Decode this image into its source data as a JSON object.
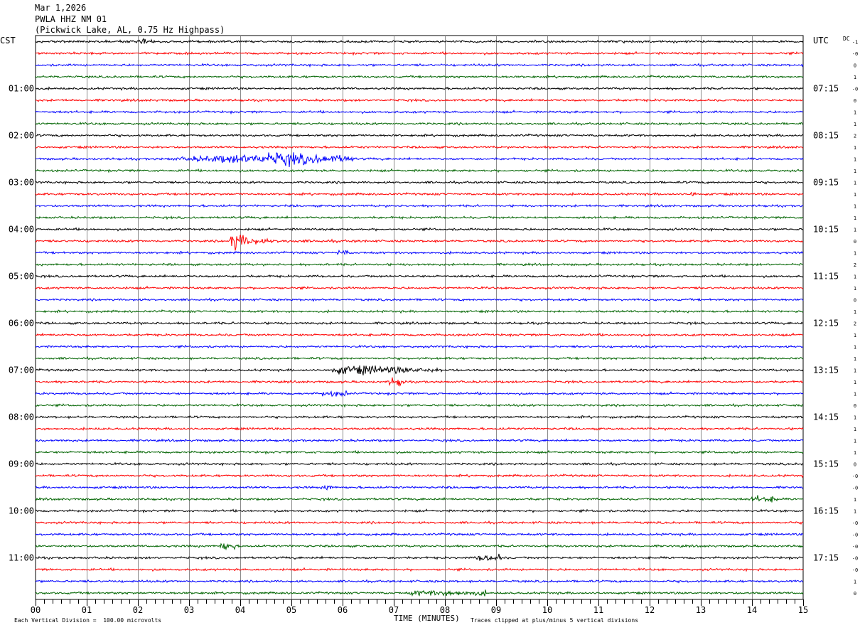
{
  "header": {
    "date": "Mar 1,2026",
    "station": "PWLA HHZ NM 01",
    "location": "(Pickwick Lake, AL, 0.75 Hz Highpass)"
  },
  "left_axis_label": "CST",
  "right_axis_label": "UTC",
  "dc_label": "DC",
  "footer": {
    "scale_note": "Each Vertical Division =  100.00 microvolts",
    "xaxis_title": "TIME (MINUTES)",
    "clip_note": "Traces clipped at plus/minus 5 vertical divisions"
  },
  "chart_data": {
    "type": "helicorder",
    "x_ticks": [
      "00",
      "01",
      "02",
      "03",
      "04",
      "05",
      "06",
      "07",
      "08",
      "09",
      "10",
      "11",
      "12",
      "13",
      "14",
      "15"
    ],
    "xlim": [
      0,
      15
    ],
    "minutes_per_line": 15,
    "line_count": 48,
    "trace_colors": [
      "#000000",
      "#ff0000",
      "#0000ff",
      "#006400"
    ],
    "left_hour_labels": [
      "01:00",
      "02:00",
      "03:00",
      "04:00",
      "05:00",
      "06:00",
      "07:00",
      "08:00",
      "09:00",
      "10:00",
      "11:00"
    ],
    "right_hour_labels": [
      "07:15",
      "08:15",
      "09:15",
      "10:15",
      "11:15",
      "12:15",
      "13:15",
      "14:15",
      "15:15",
      "16:15",
      "17:15"
    ],
    "dc_offsets": [
      "-1",
      "-0",
      "0",
      "1",
      "-0",
      "0",
      "1",
      "1",
      "2",
      "1",
      "1",
      "1",
      "1",
      "1",
      "1",
      "1",
      "1",
      "0",
      "1",
      "2",
      "1",
      "1",
      "0",
      "1",
      "2",
      "1",
      "1",
      "1",
      "1",
      "1",
      "1",
      "0",
      "1",
      "1",
      "1",
      "1",
      "0",
      "-0",
      "-0",
      "1",
      "1",
      "-0",
      "-0",
      "-0",
      "-0",
      "-0",
      "1",
      "0"
    ],
    "events": [
      {
        "line": 0,
        "start_min": 2.0,
        "end_min": 2.3,
        "amplitude": 1.2
      },
      {
        "line": 10,
        "start_min": 2.5,
        "end_min": 6.2,
        "amplitude": 3.0,
        "peak_min": 4.8
      },
      {
        "line": 13,
        "start_min": 12.8,
        "end_min": 12.9,
        "amplitude": 1.1
      },
      {
        "line": 17,
        "start_min": 3.8,
        "end_min": 6.5,
        "amplitude": 5.0,
        "peak_min": 3.8,
        "impulsive": true
      },
      {
        "line": 18,
        "start_min": 5.9,
        "end_min": 6.1,
        "amplitude": 1.0
      },
      {
        "line": 28,
        "start_min": 5.8,
        "end_min": 8.3,
        "amplitude": 2.0,
        "peak_min": 6.3
      },
      {
        "line": 29,
        "start_min": 6.9,
        "end_min": 7.2,
        "amplitude": 2.0
      },
      {
        "line": 30,
        "start_min": 5.6,
        "end_min": 6.1,
        "amplitude": 1.0
      },
      {
        "line": 38,
        "start_min": 5.6,
        "end_min": 5.8,
        "amplitude": 1.2
      },
      {
        "line": 39,
        "start_min": 14.0,
        "end_min": 14.5,
        "amplitude": 1.2
      },
      {
        "line": 43,
        "start_min": 3.6,
        "end_min": 3.9,
        "amplitude": 1.8
      },
      {
        "line": 44,
        "start_min": 8.6,
        "end_min": 9.1,
        "amplitude": 1.4
      },
      {
        "line": 47,
        "start_min": 7.3,
        "end_min": 8.8,
        "amplitude": 1.0
      }
    ]
  }
}
